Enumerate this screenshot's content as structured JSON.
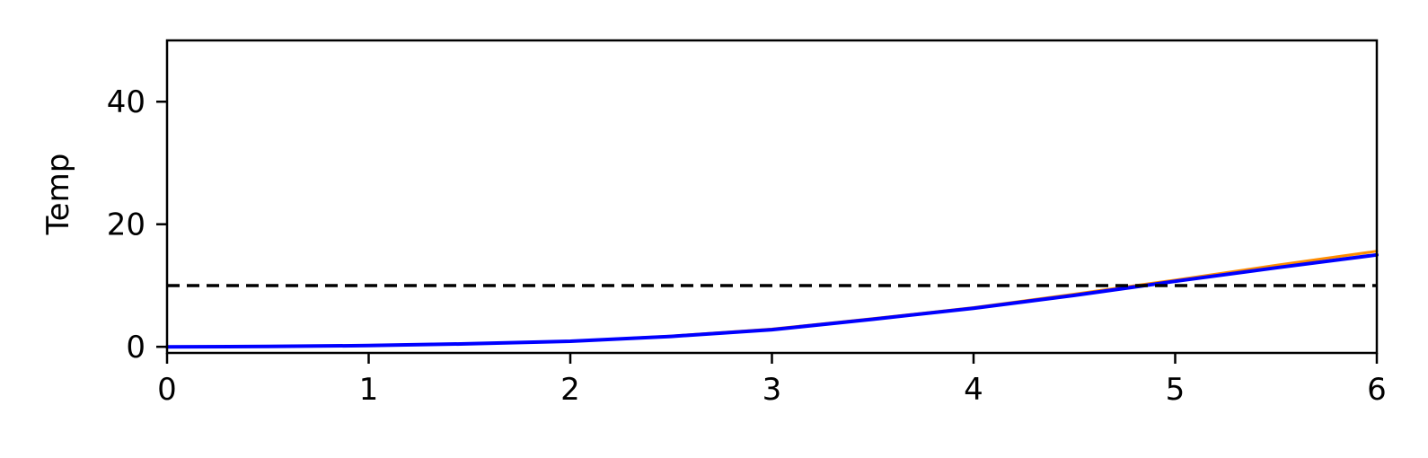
{
  "chart_data": {
    "type": "line",
    "title": "",
    "xlabel": "",
    "ylabel": "Temp",
    "xlim": [
      0,
      6
    ],
    "ylim": [
      -1,
      50
    ],
    "x_ticks": [
      "0",
      "1",
      "2",
      "3",
      "4",
      "5",
      "6"
    ],
    "y_ticks": [
      "0",
      "20",
      "40"
    ],
    "grid": false,
    "series": [
      {
        "color": "#ff8c00",
        "x": [
          0,
          0.5,
          1,
          1.5,
          2,
          2.5,
          3,
          3.5,
          4,
          4.5,
          5,
          5.5,
          6
        ],
        "y": [
          0,
          0.05,
          0.25,
          0.5,
          0.9,
          1.75,
          2.9,
          4.6,
          6.4,
          8.6,
          10.9,
          13.3,
          15.6
        ]
      },
      {
        "color": "#0000ff",
        "x": [
          0,
          0.5,
          1,
          1.5,
          2,
          2.5,
          3,
          3.5,
          4,
          4.5,
          5,
          5.5,
          6
        ],
        "y": [
          0,
          0.05,
          0.2,
          0.5,
          0.9,
          1.7,
          2.8,
          4.5,
          6.3,
          8.4,
          10.7,
          12.9,
          15.0
        ]
      }
    ],
    "reference_line": {
      "y": 10,
      "style": "dashed",
      "color": "#000000"
    }
  }
}
